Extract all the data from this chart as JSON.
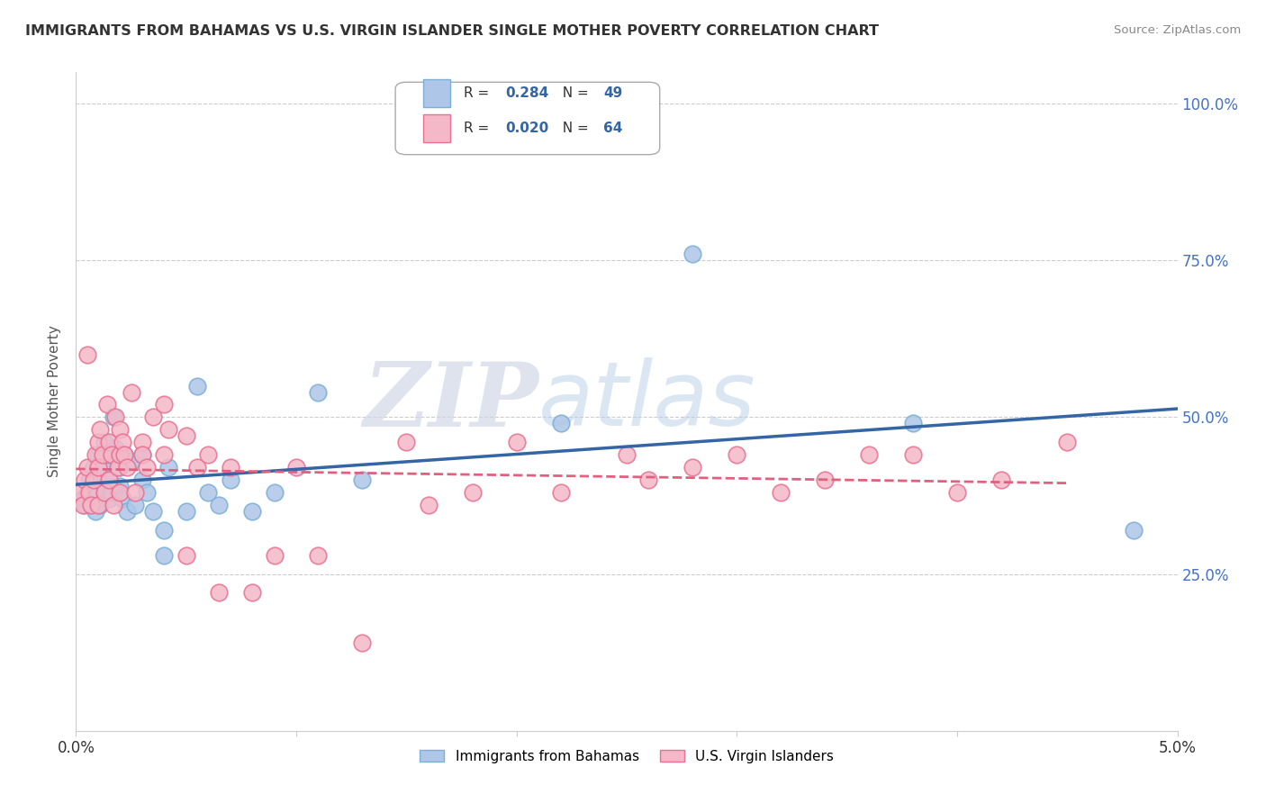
{
  "title": "IMMIGRANTS FROM BAHAMAS VS U.S. VIRGIN ISLANDER SINGLE MOTHER POVERTY CORRELATION CHART",
  "source": "Source: ZipAtlas.com",
  "ylabel": "Single Mother Poverty",
  "ytick_labels": [
    "100.0%",
    "75.0%",
    "50.0%",
    "25.0%"
  ],
  "ytick_values": [
    1.0,
    0.75,
    0.5,
    0.25
  ],
  "xlim": [
    0.0,
    0.05
  ],
  "ylim": [
    0.0,
    1.05
  ],
  "r_blue": 0.284,
  "n_blue": 49,
  "r_pink": 0.02,
  "n_pink": 64,
  "blue_color": "#aec6e8",
  "blue_edge": "#7bafd4",
  "pink_color": "#f4b8c8",
  "pink_edge": "#e87090",
  "trendline_blue": "#3465a4",
  "trendline_pink": "#e06080",
  "watermark_zip": "ZIP",
  "watermark_atlas": "atlas",
  "legend_label_blue": "Immigrants from Bahamas",
  "legend_label_pink": "U.S. Virgin Islanders",
  "blue_scatter_x": [
    0.0003,
    0.0004,
    0.0005,
    0.0006,
    0.0007,
    0.0007,
    0.0008,
    0.0009,
    0.001,
    0.001,
    0.001,
    0.0011,
    0.0012,
    0.0013,
    0.0013,
    0.0014,
    0.0015,
    0.0015,
    0.0016,
    0.0017,
    0.0018,
    0.0019,
    0.002,
    0.002,
    0.0021,
    0.0022,
    0.0023,
    0.0025,
    0.0027,
    0.003,
    0.003,
    0.0032,
    0.0035,
    0.004,
    0.004,
    0.0042,
    0.005,
    0.0055,
    0.006,
    0.0065,
    0.007,
    0.008,
    0.009,
    0.011,
    0.013,
    0.022,
    0.028,
    0.038,
    0.048
  ],
  "blue_scatter_y": [
    0.37,
    0.36,
    0.38,
    0.4,
    0.36,
    0.38,
    0.42,
    0.35,
    0.38,
    0.44,
    0.4,
    0.36,
    0.42,
    0.46,
    0.38,
    0.44,
    0.37,
    0.4,
    0.38,
    0.5,
    0.45,
    0.38,
    0.39,
    0.42,
    0.37,
    0.44,
    0.35,
    0.43,
    0.36,
    0.44,
    0.4,
    0.38,
    0.35,
    0.32,
    0.28,
    0.42,
    0.35,
    0.55,
    0.38,
    0.36,
    0.4,
    0.35,
    0.38,
    0.54,
    0.4,
    0.49,
    0.76,
    0.49,
    0.32
  ],
  "pink_scatter_x": [
    0.0002,
    0.0003,
    0.0004,
    0.0005,
    0.0005,
    0.0006,
    0.0007,
    0.0008,
    0.0009,
    0.001,
    0.001,
    0.001,
    0.0011,
    0.0012,
    0.0013,
    0.0014,
    0.0015,
    0.0015,
    0.0016,
    0.0017,
    0.0018,
    0.0019,
    0.002,
    0.002,
    0.002,
    0.0021,
    0.0022,
    0.0023,
    0.0025,
    0.0027,
    0.003,
    0.003,
    0.0032,
    0.0035,
    0.004,
    0.004,
    0.0042,
    0.005,
    0.005,
    0.0055,
    0.006,
    0.0065,
    0.007,
    0.008,
    0.009,
    0.01,
    0.011,
    0.013,
    0.015,
    0.016,
    0.018,
    0.02,
    0.022,
    0.025,
    0.026,
    0.028,
    0.03,
    0.032,
    0.034,
    0.036,
    0.038,
    0.04,
    0.042,
    0.045
  ],
  "pink_scatter_y": [
    0.38,
    0.36,
    0.4,
    0.6,
    0.42,
    0.38,
    0.36,
    0.4,
    0.44,
    0.42,
    0.46,
    0.36,
    0.48,
    0.44,
    0.38,
    0.52,
    0.46,
    0.4,
    0.44,
    0.36,
    0.5,
    0.42,
    0.48,
    0.44,
    0.38,
    0.46,
    0.44,
    0.42,
    0.54,
    0.38,
    0.46,
    0.44,
    0.42,
    0.5,
    0.44,
    0.52,
    0.48,
    0.47,
    0.28,
    0.42,
    0.44,
    0.22,
    0.42,
    0.22,
    0.28,
    0.42,
    0.28,
    0.14,
    0.46,
    0.36,
    0.38,
    0.46,
    0.38,
    0.44,
    0.4,
    0.42,
    0.44,
    0.38,
    0.4,
    0.44,
    0.44,
    0.38,
    0.4,
    0.46
  ]
}
